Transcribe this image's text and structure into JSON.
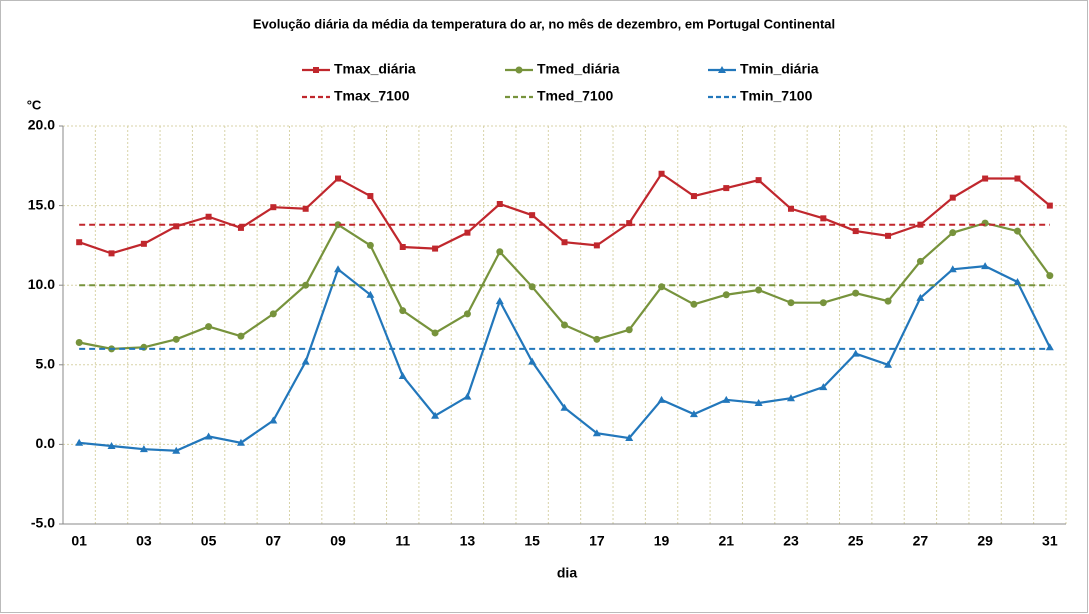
{
  "chart_data": {
    "type": "line",
    "title": "Evolução diária da média da temperatura do ar, no mês de dezembro, em Portugal Continental",
    "y_label": "°C",
    "x_label": "dia",
    "categories": [
      "01",
      null,
      "03",
      null,
      "05",
      null,
      "07",
      null,
      "09",
      null,
      "11",
      null,
      "13",
      null,
      "15",
      null,
      "17",
      null,
      "19",
      null,
      "21",
      null,
      "23",
      null,
      "25",
      null,
      "27",
      null,
      "29",
      null,
      "31"
    ],
    "ylim": [
      -5,
      20
    ],
    "yticks": [
      {
        "value": -5,
        "label": "-5.0"
      },
      {
        "value": 0,
        "label": "0.0"
      },
      {
        "value": 5,
        "label": "5.0"
      },
      {
        "value": 10,
        "label": "10.0"
      },
      {
        "value": 15,
        "label": "15.0"
      },
      {
        "value": 20,
        "label": "20.0"
      }
    ],
    "grid": true,
    "series": [
      {
        "name": "Tmax_diária",
        "color": "#c0272d",
        "line_style": "solid",
        "marker": "square",
        "values": [
          12.7,
          12.0,
          12.6,
          13.7,
          14.3,
          13.6,
          14.9,
          14.8,
          16.7,
          15.6,
          12.4,
          12.3,
          13.3,
          15.1,
          14.4,
          12.7,
          12.5,
          13.9,
          17.0,
          15.6,
          16.1,
          16.6,
          14.8,
          14.2,
          13.4,
          13.1,
          13.8,
          15.5,
          16.7,
          16.7,
          15.0
        ]
      },
      {
        "name": "Tmed_diária",
        "color": "#77933c",
        "line_style": "solid",
        "marker": "circle",
        "values": [
          6.4,
          6.0,
          6.1,
          6.6,
          7.4,
          6.8,
          8.2,
          10.0,
          13.8,
          12.5,
          8.4,
          7.0,
          8.2,
          12.1,
          9.9,
          7.5,
          6.6,
          7.2,
          9.9,
          8.8,
          9.4,
          9.7,
          8.9,
          8.9,
          9.5,
          9.0,
          11.5,
          13.3,
          13.9,
          13.4,
          10.6
        ]
      },
      {
        "name": "Tmin_diária",
        "color": "#2277bb",
        "line_style": "solid",
        "marker": "triangle",
        "values": [
          0.1,
          -0.1,
          -0.3,
          -0.4,
          0.5,
          0.1,
          1.5,
          5.2,
          11.0,
          9.4,
          4.3,
          1.8,
          3.0,
          9.0,
          5.2,
          2.3,
          0.7,
          0.4,
          2.8,
          1.9,
          2.8,
          2.6,
          2.9,
          3.6,
          5.7,
          5.0,
          9.2,
          11.0,
          11.2,
          10.2,
          6.1
        ]
      },
      {
        "name": "Tmax_7100",
        "color": "#c0272d",
        "line_style": "dashed",
        "values": [
          13.8,
          13.8,
          13.8,
          13.8,
          13.8,
          13.8,
          13.8,
          13.8,
          13.8,
          13.8,
          13.8,
          13.8,
          13.8,
          13.8,
          13.8,
          13.8,
          13.8,
          13.8,
          13.8,
          13.8,
          13.8,
          13.8,
          13.8,
          13.8,
          13.8,
          13.8,
          13.8,
          13.8,
          13.8,
          13.8,
          13.8
        ]
      },
      {
        "name": "Tmed_7100",
        "color": "#77933c",
        "line_style": "dashed",
        "values": [
          10.0,
          10.0,
          10.0,
          10.0,
          10.0,
          10.0,
          10.0,
          10.0,
          10.0,
          10.0,
          10.0,
          10.0,
          10.0,
          10.0,
          10.0,
          10.0,
          10.0,
          10.0,
          10.0,
          10.0,
          10.0,
          10.0,
          10.0,
          10.0,
          10.0,
          10.0,
          10.0,
          10.0,
          10.0,
          10.0,
          10.0
        ]
      },
      {
        "name": "Tmin_7100",
        "color": "#2277bb",
        "line_style": "dashed",
        "values": [
          6.0,
          6.0,
          6.0,
          6.0,
          6.0,
          6.0,
          6.0,
          6.0,
          6.0,
          6.0,
          6.0,
          6.0,
          6.0,
          6.0,
          6.0,
          6.0,
          6.0,
          6.0,
          6.0,
          6.0,
          6.0,
          6.0,
          6.0,
          6.0,
          6.0,
          6.0,
          6.0,
          6.0,
          6.0,
          6.0,
          6.0
        ]
      }
    ]
  }
}
